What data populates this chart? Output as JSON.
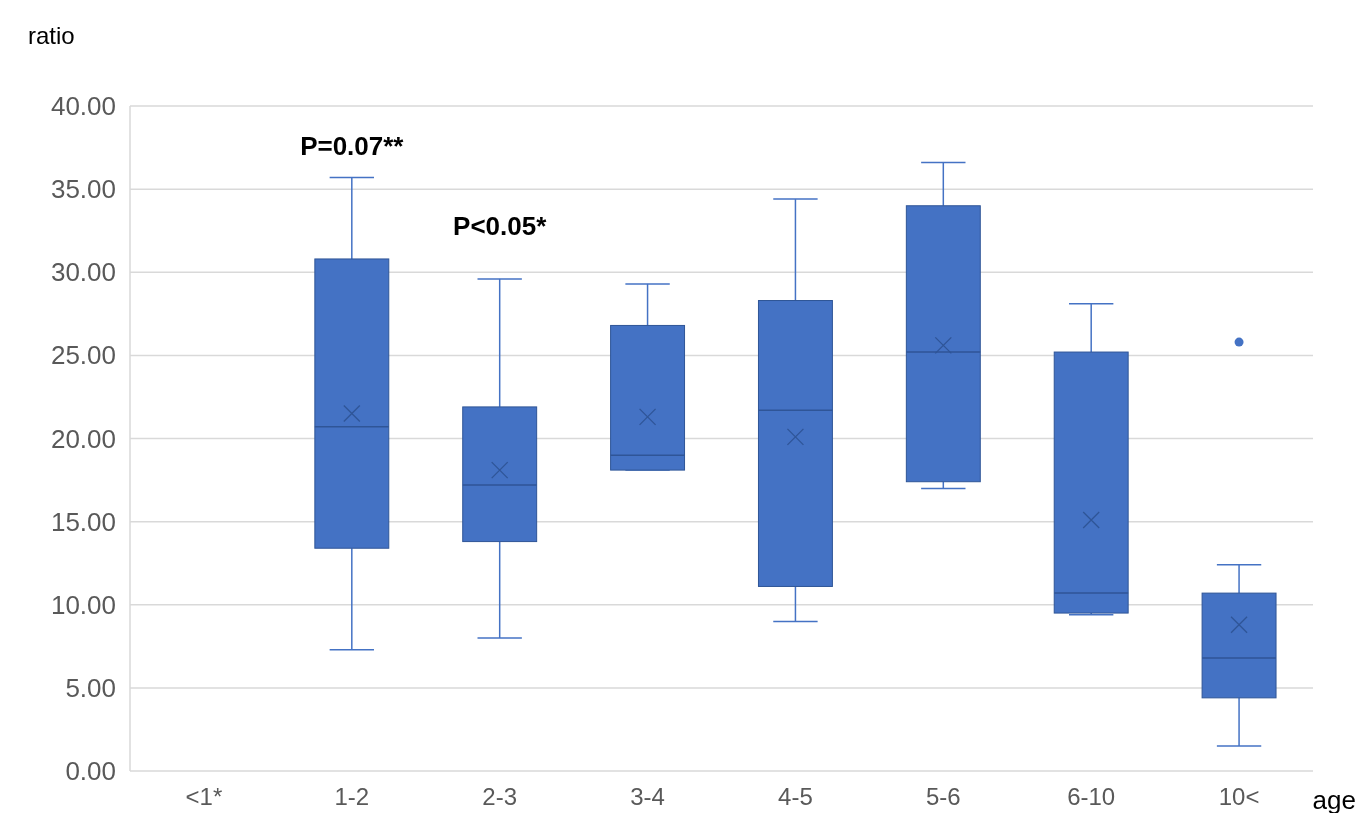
{
  "chart_data": {
    "type": "box",
    "xlabel": "age",
    "ylabel": "ratio",
    "categories": [
      "<1*",
      "1-2",
      "2-3",
      "3-4",
      "4-5",
      "5-6",
      "6-10",
      "10<"
    ],
    "color": "#4472c4",
    "ylim": [
      0,
      40
    ],
    "yticks": [
      {
        "value": 0,
        "label": "0.00"
      },
      {
        "value": 5,
        "label": "5.00"
      },
      {
        "value": 10,
        "label": "10.00"
      },
      {
        "value": 15,
        "label": "15.00"
      },
      {
        "value": 20,
        "label": "20.00"
      },
      {
        "value": 25,
        "label": "25.00"
      },
      {
        "value": 30,
        "label": "30.00"
      },
      {
        "value": 35,
        "label": "35.00"
      },
      {
        "value": 40,
        "label": "40.00"
      }
    ],
    "grid": "y",
    "boxes": [
      null,
      {
        "low": 7.3,
        "q1": 13.4,
        "median": 20.7,
        "q3": 30.8,
        "high": 35.7,
        "mean": 21.5
      },
      {
        "low": 8.0,
        "q1": 13.8,
        "median": 17.2,
        "q3": 21.9,
        "high": 29.6,
        "mean": 18.1
      },
      {
        "low": 18.1,
        "q1": 18.1,
        "median": 19.0,
        "q3": 26.8,
        "high": 29.3,
        "mean": 21.3
      },
      {
        "low": 9.0,
        "q1": 11.1,
        "median": 21.7,
        "q3": 28.3,
        "high": 34.4,
        "mean": 20.1
      },
      {
        "low": 17.0,
        "q1": 17.4,
        "median": 25.2,
        "q3": 34.0,
        "high": 36.6,
        "mean": 25.6
      },
      {
        "low": 9.4,
        "q1": 9.5,
        "median": 10.7,
        "q3": 25.2,
        "high": 28.1,
        "mean": 15.1
      },
      {
        "low": 1.5,
        "q1": 4.4,
        "median": 6.8,
        "q3": 10.7,
        "high": 12.4,
        "mean": 8.8,
        "outliers": [
          25.8
        ]
      }
    ],
    "annotations": [
      "P=0.07**",
      "P<0.05*"
    ]
  }
}
